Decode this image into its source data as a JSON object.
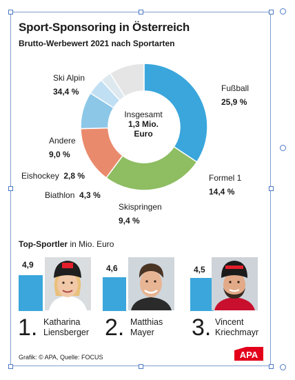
{
  "title": "Sport-Sponsoring in Österreich",
  "subtitle": "Brutto-Werbewert 2021 nach Sportarten",
  "center": {
    "line1": "Insgesamt",
    "line2": "1,3 Mio.",
    "line3": "Euro"
  },
  "chart_data": {
    "type": "pie",
    "title": "Sport-Sponsoring in Österreich",
    "subtitle": "Brutto-Werbewert 2021 nach Sportarten",
    "total_label": "Insgesamt 1,3 Mio. Euro",
    "slices": [
      {
        "name": "Ski Alpin",
        "value": 34.4,
        "label": "34,4 %",
        "color": "#3aa6dc"
      },
      {
        "name": "Fußball",
        "value": 25.9,
        "label": "25,9 %",
        "color": "#8ebd62"
      },
      {
        "name": "Formel 1",
        "value": 14.4,
        "label": "14,4 %",
        "color": "#ea8a6c"
      },
      {
        "name": "Skispringen",
        "value": 9.4,
        "label": "9,4 %",
        "color": "#8dc7e7"
      },
      {
        "name": "Biathlon",
        "value": 4.3,
        "label": "4,3 %",
        "color": "#c1dff2"
      },
      {
        "name": "Eishockey",
        "value": 2.8,
        "label": "2,8 %",
        "color": "#dde8ef"
      },
      {
        "name": "Andere",
        "value": 9.0,
        "label": "9,0 %",
        "color": "#e5e5e5"
      }
    ]
  },
  "top_sportler": {
    "heading_bold": "Top-Sportler",
    "heading_rest": " in Mio. Euro",
    "bar_color": "#3aa6dc",
    "athletes": [
      {
        "rank": "1.",
        "value": 4.9,
        "value_label": "4,9",
        "first": "Katharina",
        "last": "Liensberger"
      },
      {
        "rank": "2.",
        "value": 4.6,
        "value_label": "4,6",
        "first": "Matthias",
        "last": "Mayer"
      },
      {
        "rank": "3.",
        "value": 4.5,
        "value_label": "4,5",
        "first": "Vincent",
        "last": "Kriechmayr"
      }
    ]
  },
  "credit": "Grafik: © APA, Quelle: FOCUS",
  "logo": "APA"
}
